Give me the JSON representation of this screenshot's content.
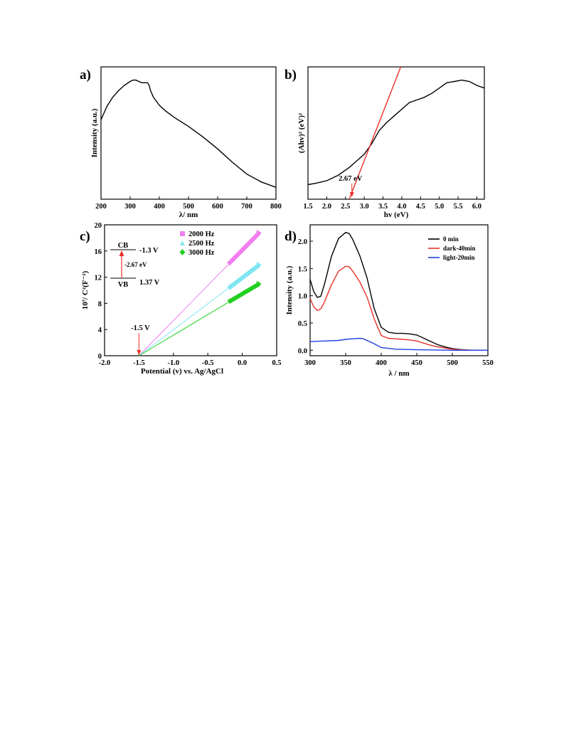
{
  "figure": {
    "panel_labels": [
      "a)",
      "b)",
      "c)",
      "d)"
    ]
  },
  "chart_data": [
    {
      "id": "a",
      "type": "line",
      "title": "",
      "xlabel": "λ/ nm",
      "ylabel": "Intensity (a.u.)",
      "xlim": [
        200,
        800
      ],
      "ylim": [
        0,
        1
      ],
      "xticks": [
        200,
        300,
        400,
        500,
        600,
        700,
        800
      ],
      "grid": false,
      "color": "#000000",
      "series": [
        {
          "x": [
            200,
            210,
            220,
            240,
            260,
            280,
            300,
            310,
            320,
            330,
            340,
            350,
            360,
            365,
            370,
            380,
            400,
            420,
            450,
            500,
            550,
            600,
            650,
            700,
            750,
            800
          ],
          "values": [
            0.6,
            0.65,
            0.7,
            0.77,
            0.82,
            0.86,
            0.89,
            0.9,
            0.9,
            0.89,
            0.88,
            0.88,
            0.88,
            0.86,
            0.82,
            0.77,
            0.71,
            0.67,
            0.62,
            0.55,
            0.47,
            0.38,
            0.28,
            0.19,
            0.13,
            0.09
          ]
        }
      ]
    },
    {
      "id": "b",
      "type": "line",
      "title": "",
      "xlabel": "hv (eV)",
      "ylabel": "(Ahv)² (eV)²",
      "xlim": [
        1.5,
        6.2
      ],
      "ylim": [
        0,
        1
      ],
      "xticks": [
        1.5,
        2.0,
        2.5,
        3.0,
        3.5,
        4.0,
        4.5,
        5.0,
        5.5,
        6.0
      ],
      "grid": false,
      "annotation": "2.67 eV",
      "annotation_x": 2.67,
      "series": [
        {
          "color": "#000000",
          "x": [
            1.5,
            1.7,
            2.0,
            2.3,
            2.6,
            2.8,
            3.0,
            3.2,
            3.4,
            3.6,
            3.8,
            4.0,
            4.2,
            4.4,
            4.6,
            4.8,
            5.0,
            5.2,
            5.4,
            5.6,
            5.8,
            6.0,
            6.2
          ],
          "values": [
            0.11,
            0.12,
            0.14,
            0.18,
            0.24,
            0.29,
            0.34,
            0.42,
            0.52,
            0.58,
            0.63,
            0.68,
            0.73,
            0.75,
            0.77,
            0.8,
            0.84,
            0.88,
            0.89,
            0.9,
            0.89,
            0.86,
            0.84
          ]
        },
        {
          "color": "#e8302a",
          "x": [
            2.6,
            4.0
          ],
          "values": [
            0.0,
            1.02
          ]
        }
      ]
    },
    {
      "id": "c",
      "type": "scatter",
      "title": "",
      "xlabel": "Potential (v) vs. Ag/AgCl",
      "ylabel": "10⁷/ C²(F⁻²)",
      "xlim": [
        -2.0,
        0.5
      ],
      "ylim": [
        0,
        20
      ],
      "xticks": [
        -2.0,
        -1.5,
        -1.0,
        -0.5,
        0.0,
        0.5
      ],
      "yticks": [
        0,
        4,
        8,
        12,
        16,
        20
      ],
      "grid": false,
      "legend_position": "top",
      "series": [
        {
          "name": "2000 Hz",
          "color": "#f07ef0",
          "marker": "square",
          "x": [
            -0.2,
            0.25
          ],
          "values": [
            14.0,
            18.8
          ],
          "fit_x": [
            -1.5,
            0.25
          ],
          "fit_values": [
            0.0,
            18.8
          ]
        },
        {
          "name": "2500 Hz",
          "color": "#7fe6f2",
          "marker": "triangle",
          "x": [
            -0.2,
            0.25
          ],
          "values": [
            10.3,
            13.9
          ],
          "fit_x": [
            -1.5,
            0.25
          ],
          "fit_values": [
            0.0,
            13.9
          ]
        },
        {
          "name": "3000 Hz",
          "color": "#22d022",
          "marker": "diamond",
          "x": [
            -0.2,
            0.25
          ],
          "values": [
            8.2,
            11.0
          ],
          "fit_x": [
            -1.5,
            0.25
          ],
          "fit_values": [
            0.0,
            11.0
          ]
        }
      ],
      "annotations": {
        "flatband_label": "-1.5 V",
        "flatband_x": -1.5,
        "cb_label": "CB",
        "cb_value": "-1.3 V",
        "gap_label": "-2.67 eV",
        "vb_label": "VB",
        "vb_value": "1.37 V"
      }
    },
    {
      "id": "d",
      "type": "line",
      "title": "",
      "xlabel": "λ / nm",
      "ylabel": "Intensity (a.u.)",
      "xlim": [
        300,
        550
      ],
      "ylim": [
        -0.1,
        2.3
      ],
      "xticks": [
        300,
        350,
        400,
        450,
        500,
        550
      ],
      "yticks": [
        0.0,
        0.5,
        1.0,
        1.5,
        2.0
      ],
      "grid": false,
      "legend_position": "top-right",
      "series": [
        {
          "name": "0 min",
          "color": "#000000",
          "x": [
            300,
            305,
            310,
            315,
            320,
            330,
            340,
            350,
            355,
            360,
            370,
            380,
            390,
            400,
            410,
            420,
            430,
            440,
            450,
            460,
            470,
            480,
            490,
            500,
            510,
            520,
            530,
            540,
            550
          ],
          "values": [
            1.3,
            1.08,
            0.97,
            0.99,
            1.2,
            1.72,
            2.05,
            2.16,
            2.14,
            2.03,
            1.73,
            1.33,
            0.77,
            0.42,
            0.33,
            0.31,
            0.31,
            0.3,
            0.28,
            0.22,
            0.16,
            0.1,
            0.06,
            0.03,
            0.015,
            0.005,
            0.0,
            0.0,
            0.0
          ]
        },
        {
          "name": "dark-40min",
          "color": "#e8302a",
          "x": [
            300,
            305,
            310,
            315,
            320,
            330,
            340,
            350,
            355,
            360,
            370,
            380,
            390,
            400,
            410,
            420,
            430,
            440,
            450,
            460,
            470,
            480,
            490,
            500,
            510,
            520,
            530,
            540,
            550
          ],
          "values": [
            0.95,
            0.8,
            0.73,
            0.76,
            0.88,
            1.2,
            1.45,
            1.54,
            1.53,
            1.45,
            1.25,
            0.98,
            0.58,
            0.27,
            0.22,
            0.21,
            0.2,
            0.19,
            0.17,
            0.13,
            0.09,
            0.06,
            0.04,
            0.02,
            0.01,
            0.005,
            0.0,
            0.0,
            0.0
          ]
        },
        {
          "name": "light-20min",
          "color": "#1f3fe0",
          "x": [
            300,
            320,
            340,
            350,
            360,
            370,
            375,
            380,
            390,
            400,
            420,
            450,
            500,
            550
          ],
          "values": [
            0.16,
            0.17,
            0.18,
            0.2,
            0.21,
            0.22,
            0.21,
            0.18,
            0.12,
            0.05,
            0.02,
            0.01,
            0.0,
            0.0
          ]
        }
      ]
    }
  ]
}
